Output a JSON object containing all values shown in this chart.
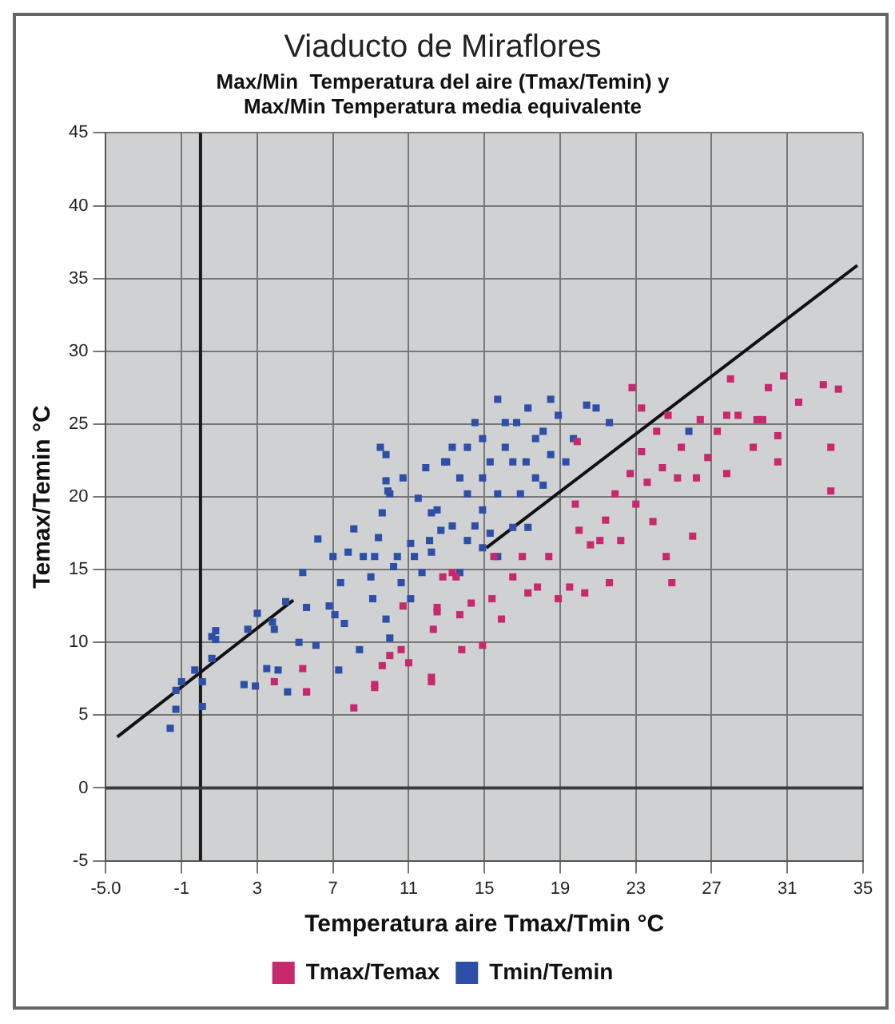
{
  "chart_data": {
    "type": "scatter",
    "title": "Viaducto de Miraflores",
    "subtitle": "Max/Min  Temperatura del aire (Tmax/Temin) y\nMax/Min Temperatura media equivalente",
    "xlabel": "Temperatura aire Tmax/Tmin °C",
    "ylabel": "Temax/Temin °C",
    "xlim": [
      -5,
      35
    ],
    "xticks": [
      {
        "value": -5,
        "label": "-5.0"
      },
      -1,
      3,
      7,
      11,
      15,
      19,
      23,
      27,
      31,
      35
    ],
    "ylim": [
      -5,
      45
    ],
    "yticks": [
      -5,
      0,
      5,
      10,
      15,
      20,
      25,
      30,
      35,
      40,
      45
    ],
    "grid": true,
    "legend": "bottom",
    "marker": "square",
    "ref_lines": [
      {
        "axis": "x",
        "value": 0,
        "color": "#1a1a1a"
      },
      {
        "axis": "y",
        "value": 0,
        "color": "#3c3c3c"
      }
    ],
    "series": [
      {
        "name": "Tmax/Temax",
        "color": "#c8286e",
        "x": [
          3.9,
          5.4,
          5.6,
          5.6,
          8.1,
          9.2,
          9.2,
          9.6,
          10,
          10.6,
          11,
          10.7,
          12.2,
          12.2,
          12.3,
          12.5,
          12.8,
          12.5,
          13.3,
          13.5,
          13.7,
          13.8,
          14.3,
          14.9,
          15.4,
          15.5,
          15.9,
          16.5,
          17,
          17.3,
          17.8,
          18.4,
          18.9,
          19.5,
          20.3,
          19.9,
          19.8,
          20,
          20.6,
          21.1,
          21.4,
          21.6,
          21.9,
          22.2,
          22.7,
          23,
          23.3,
          23.6,
          23.9,
          24.1,
          24.4,
          24.9,
          24.7,
          25.2,
          25.4,
          26,
          26.2,
          26.4,
          26.8,
          27.3,
          27.8,
          28.4,
          29.2,
          29.7,
          30.5,
          30.5,
          33.3,
          22.8,
          23.3,
          28,
          30,
          30.8,
          31.6,
          32.9,
          33.7,
          27.8,
          29.4,
          33.3,
          24.6
        ],
        "values": [
          7.3,
          8.2,
          6.6,
          6.6,
          5.5,
          6.9,
          7.1,
          8.4,
          9.1,
          9.5,
          8.6,
          12.5,
          7.6,
          7.3,
          10.9,
          12.4,
          14.5,
          12.1,
          14.8,
          14.5,
          11.9,
          9.5,
          12.7,
          9.8,
          13,
          15.9,
          11.6,
          14.5,
          15.9,
          13.4,
          13.8,
          15.9,
          13,
          13.8,
          13.4,
          23.8,
          19.5,
          17.7,
          16.7,
          17,
          18.4,
          14.1,
          20.2,
          17,
          21.6,
          19.5,
          23.1,
          21,
          18.3,
          24.5,
          22,
          14.1,
          25.6,
          21.3,
          23.4,
          17.3,
          21.3,
          25.3,
          22.7,
          24.5,
          21.6,
          25.6,
          23.4,
          25.3,
          22.4,
          24.2,
          23.4,
          27.5,
          26.1,
          28.1,
          27.5,
          28.3,
          26.5,
          27.7,
          27.4,
          25.6,
          25.3,
          20.4,
          15.9
        ]
      },
      {
        "name": "Tmin/Temin",
        "color": "#2d4fa8",
        "x": [
          -1.6,
          -1.3,
          -1,
          -1.3,
          -0.3,
          0.1,
          0.1,
          0.6,
          0.8,
          0.8,
          0.6,
          2.3,
          2.9,
          2.5,
          3,
          3.8,
          3.9,
          3.5,
          4.1,
          4.5,
          4.6,
          5.2,
          5.4,
          5.6,
          6.1,
          6.2,
          6.8,
          7,
          7.1,
          7.3,
          7.4,
          7.6,
          7.8,
          8.1,
          8.4,
          8.6,
          9,
          9.1,
          9.2,
          9.4,
          9.5,
          9.8,
          9.6,
          9.8,
          9.9,
          9.8,
          10,
          10.2,
          10.4,
          10.6,
          11.1,
          11.1,
          11.5,
          11.9,
          12.2,
          12.2,
          12.7,
          13,
          12.5,
          12.9,
          13.3,
          13.7,
          14.1,
          14.5,
          14.9,
          15.3,
          15.7,
          15.7,
          16.1,
          16.5,
          16.7,
          17.2,
          17.3,
          17.7,
          18.1,
          18.5,
          18.9,
          19.3,
          19.7,
          20.4,
          20.9,
          14.9,
          14.1,
          13.7,
          14.5,
          15.3,
          15.7,
          14.9,
          13.3,
          12.1,
          11.7,
          11.3,
          16.5,
          16.9,
          14.1,
          10,
          10.7,
          14.9,
          16.1,
          18.1,
          18.5,
          17.3,
          17.7,
          21.6,
          25.8
        ],
        "values": [
          4.1,
          5.4,
          7.3,
          6.7,
          8.1,
          7.3,
          5.6,
          8.9,
          10.2,
          10.8,
          10.4,
          7.1,
          7,
          10.9,
          12,
          11.4,
          10.9,
          8.2,
          8.1,
          12.8,
          6.6,
          10,
          14.8,
          12.4,
          9.8,
          17.1,
          12.5,
          15.9,
          11.9,
          8.1,
          14.1,
          11.3,
          16.2,
          17.8,
          9.5,
          15.9,
          14.5,
          13,
          15.9,
          17.2,
          23.4,
          22.9,
          18.9,
          21.1,
          20.4,
          11.6,
          10.3,
          15.2,
          15.9,
          14.1,
          16.8,
          13,
          19.9,
          22,
          18.9,
          16.2,
          17.7,
          22.4,
          19.1,
          22.4,
          23.4,
          21.3,
          20.2,
          25.1,
          24,
          22.4,
          26.7,
          20.2,
          23.4,
          17.9,
          25.1,
          22.4,
          26.1,
          24,
          20.8,
          26.7,
          25.6,
          22.4,
          24,
          26.3,
          26.1,
          19.1,
          17,
          14.8,
          18,
          17.5,
          15.9,
          16.5,
          18,
          17,
          14.8,
          15.9,
          22.4,
          20.2,
          23.4,
          20.2,
          21.3,
          21.3,
          25.1,
          24.5,
          22.9,
          17.9,
          21.3,
          25.1,
          24.5
        ]
      },
      {
        "type": "line",
        "marker": "none",
        "color": "#111111",
        "x": [
          -4.4,
          4.9
        ],
        "values": [
          3.5,
          12.9
        ]
      },
      {
        "type": "line",
        "marker": "none",
        "color": "#111111",
        "x": [
          15.1,
          34.7
        ],
        "values": [
          16.5,
          35.9
        ]
      }
    ]
  }
}
